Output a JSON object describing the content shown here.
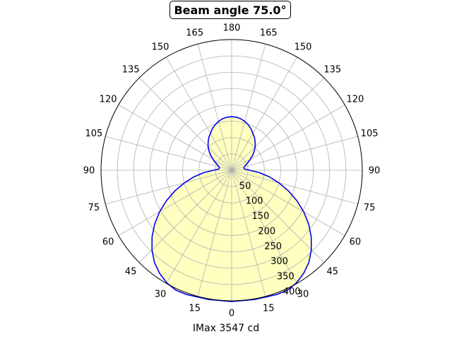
{
  "chart_data": {
    "type": "polar",
    "title": "Beam angle 75.0°",
    "xlabel": "IMax 3547 cd",
    "angle_tick_labels": [
      "0",
      "15",
      "30",
      "45",
      "60",
      "75",
      "90",
      "105",
      "120",
      "135",
      "150",
      "165",
      "180",
      "165",
      "150",
      "135",
      "120",
      "105",
      "90",
      "75",
      "60",
      "45",
      "30",
      "15"
    ],
    "radial_tick_labels": [
      "50",
      "100",
      "150",
      "200",
      "250",
      "300",
      "350",
      "400"
    ],
    "rmax": 400,
    "grid": true,
    "series": [
      {
        "angles": [
          0,
          10,
          20,
          25,
          30,
          35,
          40,
          45,
          50,
          55,
          60,
          65,
          70,
          75,
          80,
          85,
          90,
          95,
          100,
          105,
          110,
          115,
          120,
          125,
          130,
          135,
          140,
          145,
          150,
          155,
          160,
          165,
          170,
          175,
          180
        ],
        "values": [
          402,
          402,
          405,
          405,
          398,
          385,
          368,
          345,
          318,
          288,
          255,
          220,
          185,
          150,
          118,
          85,
          55,
          40,
          38,
          40,
          45,
          55,
          65,
          78,
          90,
          102,
          112,
          122,
          130,
          140,
          148,
          155,
          160,
          163,
          164
        ],
        "stroke": "#0000ee",
        "fill": "#ffffc0"
      }
    ]
  }
}
